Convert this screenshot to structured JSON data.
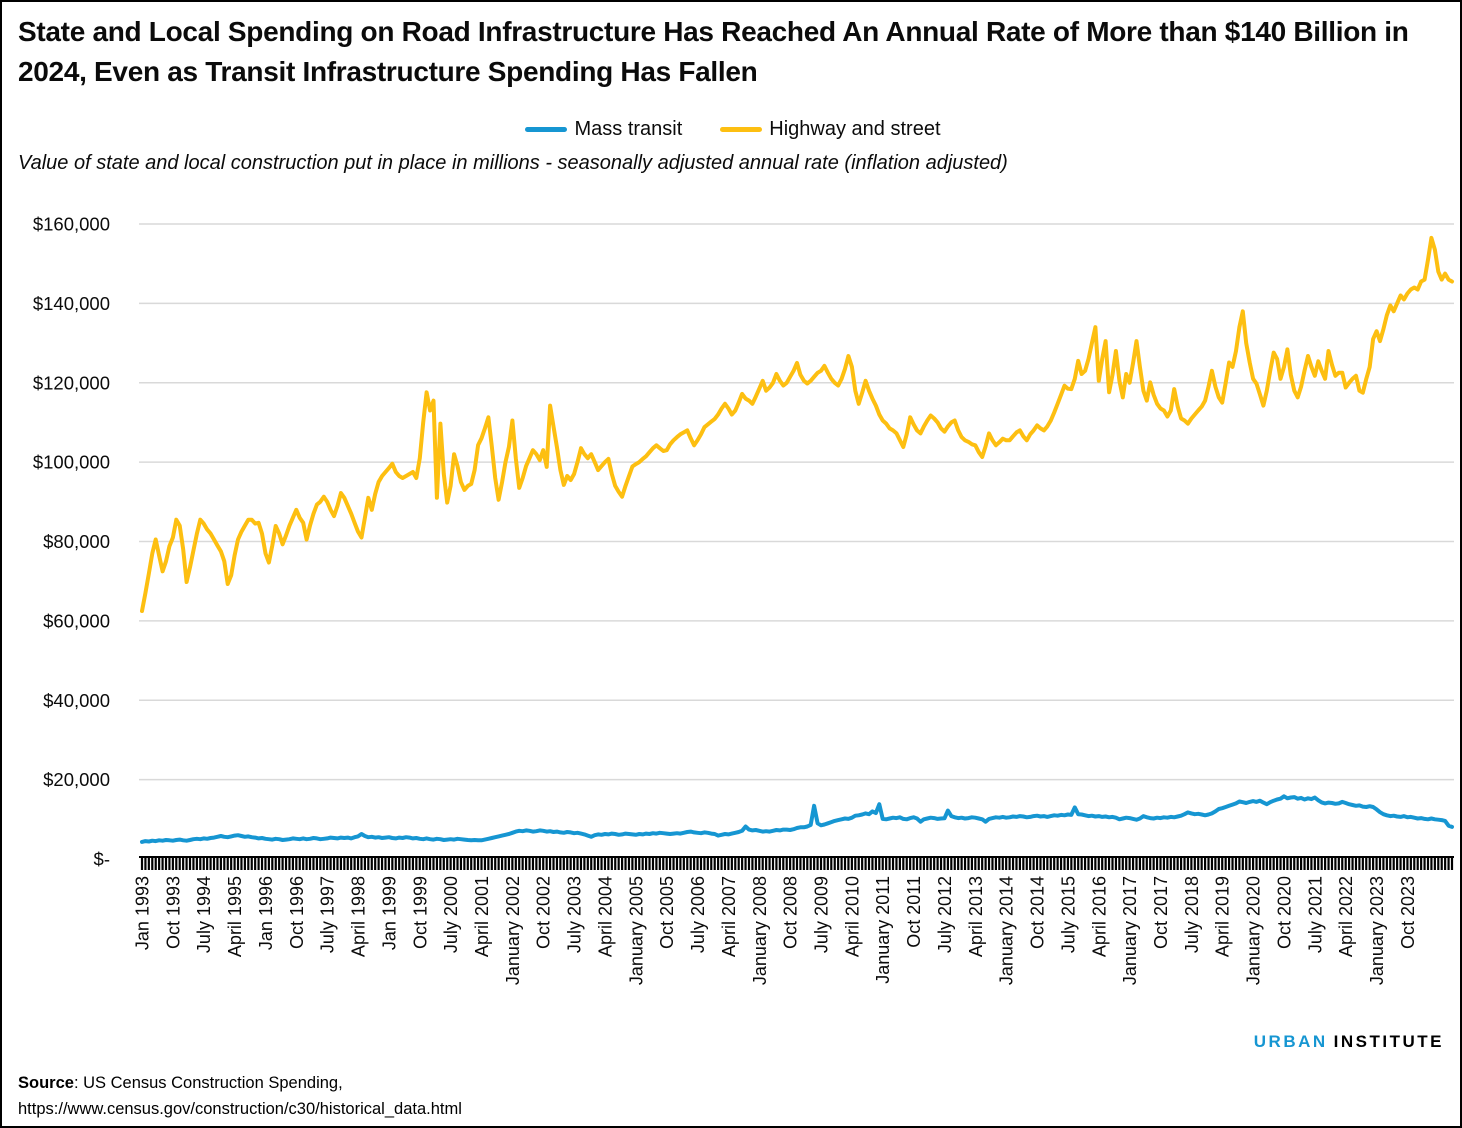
{
  "title": "State and Local Spending on Road Infrastructure Has Reached An Annual Rate of More than $140 Billion in 2024, Even as Transit Infrastructure Spending Has Fallen",
  "subtitle": "Value of state and local construction put in place in millions - seasonally adjusted annual rate (inflation adjusted)",
  "legend": [
    {
      "label": "Mass transit",
      "color": "#1696d2"
    },
    {
      "label": "Highway and street",
      "color": "#fdbf11"
    }
  ],
  "source": {
    "label": "Source",
    "rest": ": US Census Construction Spending,",
    "url": "https://www.census.gov/construction/c30/historical_data.html"
  },
  "logo": {
    "part1": "URBAN",
    "part2": "INSTITUTE",
    "color1": "#1696d2",
    "color2": "#000000"
  },
  "chart_data": {
    "type": "line",
    "x_frequency": "monthly",
    "x_start": "Jan 1993",
    "x_end": "Nov 2024",
    "x_tick_labels": [
      "Jan 1993",
      "Oct 1993",
      "July 1994",
      "April 1995",
      "Jan 1996",
      "Oct 1996",
      "July 1997",
      "April 1998",
      "Jan 1999",
      "Oct 1999",
      "July 2000",
      "April 2001",
      "January 2002",
      "Oct 2002",
      "July 2003",
      "April 2004",
      "January 2005",
      "Oct 2005",
      "July 2006",
      "April 2007",
      "January 2008",
      "Oct 2008",
      "July 2009",
      "April 2010",
      "January 2011",
      "Oct 2011",
      "July 2012",
      "April 2013",
      "January 2014",
      "Oct 2014",
      "July 2015",
      "April 2016",
      "January 2017",
      "Oct 2017",
      "July 2018",
      "April 2019",
      "January 2020",
      "Oct 2020",
      "July 2021",
      "April 2022",
      "January 2023",
      "Oct 2023"
    ],
    "x_tick_step_months": 9,
    "y_tick_labels": [
      "$160,000",
      "$140,000",
      "$120,000",
      "$100,000",
      "$80,000",
      "$60,000",
      "$40,000",
      "$20,000",
      "$-"
    ],
    "ylim": [
      0,
      160000
    ],
    "grid": "horizontal",
    "gridline_color": "#d9d9d9",
    "legend_position": "top",
    "series": [
      {
        "name": "Mass transit",
        "color": "#1696d2",
        "values": [
          4300,
          4500,
          4400,
          4600,
          4500,
          4700,
          4600,
          4800,
          4700,
          4600,
          4800,
          4900,
          4700,
          4600,
          4800,
          5000,
          5100,
          5000,
          5200,
          5100,
          5300,
          5400,
          5600,
          5800,
          5600,
          5500,
          5700,
          5900,
          6000,
          5800,
          5600,
          5700,
          5500,
          5400,
          5200,
          5300,
          5100,
          5000,
          4900,
          5100,
          5000,
          4800,
          4900,
          5000,
          5200,
          5100,
          5000,
          5200,
          5000,
          5100,
          5300,
          5200,
          5000,
          5100,
          5200,
          5400,
          5300,
          5200,
          5400,
          5300,
          5400,
          5200,
          5500,
          5700,
          6300,
          5800,
          5500,
          5600,
          5400,
          5500,
          5300,
          5400,
          5500,
          5300,
          5200,
          5400,
          5300,
          5500,
          5400,
          5200,
          5300,
          5100,
          5000,
          5200,
          5000,
          4900,
          5100,
          5000,
          4800,
          4900,
          5000,
          4900,
          5100,
          5000,
          4900,
          4800,
          4700,
          4800,
          4700,
          4700,
          4900,
          5100,
          5300,
          5500,
          5700,
          5900,
          6100,
          6300,
          6600,
          6900,
          7100,
          7000,
          7200,
          7100,
          6900,
          7000,
          7200,
          7100,
          6900,
          7000,
          6800,
          6900,
          6700,
          6600,
          6800,
          6700,
          6500,
          6600,
          6400,
          6200,
          5900,
          5600,
          6000,
          6200,
          6100,
          6300,
          6200,
          6400,
          6300,
          6100,
          6200,
          6400,
          6300,
          6200,
          6100,
          6300,
          6200,
          6400,
          6300,
          6500,
          6400,
          6600,
          6500,
          6400,
          6300,
          6400,
          6500,
          6400,
          6600,
          6800,
          6900,
          6700,
          6600,
          6500,
          6700,
          6600,
          6400,
          6300,
          5900,
          6100,
          6300,
          6200,
          6400,
          6600,
          6800,
          7100,
          8200,
          7400,
          7200,
          7300,
          7100,
          6900,
          7000,
          6900,
          7100,
          7300,
          7200,
          7400,
          7400,
          7300,
          7500,
          7800,
          8000,
          8000,
          8200,
          8600,
          13400,
          9000,
          8500,
          8700,
          9000,
          9300,
          9600,
          9800,
          10000,
          10200,
          10100,
          10400,
          10900,
          11000,
          11200,
          11500,
          11300,
          12000,
          11600,
          13800,
          10100,
          10000,
          10200,
          10400,
          10300,
          10500,
          10100,
          10000,
          10300,
          10500,
          10200,
          9400,
          10000,
          10200,
          10400,
          10300,
          10100,
          10200,
          10250,
          12200,
          10800,
          10500,
          10300,
          10400,
          10200,
          10300,
          10500,
          10400,
          10200,
          10000,
          9400,
          10100,
          10300,
          10500,
          10400,
          10600,
          10400,
          10500,
          10700,
          10600,
          10800,
          10700,
          10500,
          10600,
          10800,
          10900,
          10700,
          10800,
          10600,
          10800,
          11000,
          10900,
          11100,
          11000,
          11200,
          11100,
          13000,
          11300,
          11200,
          11000,
          10800,
          10900,
          10700,
          10800,
          10600,
          10700,
          10500,
          10600,
          10400,
          10000,
          10200,
          10400,
          10300,
          10100,
          9900,
          10200,
          10800,
          10500,
          10300,
          10200,
          10400,
          10300,
          10500,
          10400,
          10600,
          10500,
          10700,
          10900,
          11300,
          11750,
          11500,
          11300,
          11400,
          11200,
          11000,
          11200,
          11500,
          12000,
          12600,
          12800,
          13100,
          13400,
          13700,
          14000,
          14500,
          14300,
          14100,
          14400,
          14600,
          14400,
          14700,
          14200,
          13800,
          14300,
          14700,
          15000,
          15200,
          15800,
          15300,
          15500,
          15600,
          15200,
          15400,
          15000,
          15300,
          15100,
          15500,
          14800,
          14250,
          14000,
          14200,
          14100,
          13900,
          14000,
          14400,
          14100,
          13800,
          13600,
          13400,
          13500,
          13200,
          13100,
          13300,
          13100,
          12500,
          11800,
          11300,
          11000,
          10800,
          10900,
          10700,
          10600,
          10800,
          10500,
          10600,
          10400,
          10200,
          10300,
          10100,
          10000,
          10200,
          10000,
          9900,
          9800,
          9600,
          8400,
          8100
        ]
      },
      {
        "name": "Highway and street",
        "color": "#fdbf11",
        "values": [
          62500,
          67000,
          72000,
          77000,
          80500,
          76500,
          72500,
          75000,
          78800,
          81000,
          85500,
          84000,
          78000,
          69800,
          73500,
          77700,
          82000,
          85500,
          84500,
          83000,
          82000,
          80500,
          79000,
          77500,
          75000,
          69300,
          71500,
          76500,
          80500,
          82500,
          84000,
          85500,
          85500,
          84500,
          84700,
          82000,
          77000,
          74700,
          79000,
          83900,
          82000,
          79300,
          81500,
          84000,
          86000,
          88000,
          86000,
          84700,
          80500,
          84000,
          87000,
          89300,
          90000,
          91300,
          90000,
          88000,
          86400,
          89000,
          92200,
          91000,
          89000,
          87000,
          84700,
          82500,
          81000,
          86000,
          91000,
          88000,
          92000,
          95000,
          96500,
          97500,
          98500,
          99600,
          97500,
          96500,
          96000,
          96500,
          97000,
          97500,
          96000,
          101000,
          110000,
          117600,
          113000,
          115500,
          91000,
          109700,
          97000,
          89800,
          94000,
          102000,
          99000,
          95000,
          93000,
          94000,
          94500,
          98000,
          104300,
          106000,
          108500,
          111300,
          104000,
          96000,
          90500,
          95000,
          100000,
          103800,
          110500,
          101000,
          93500,
          96000,
          99000,
          101000,
          103000,
          102000,
          100500,
          103000,
          98800,
          114250,
          109000,
          103800,
          98000,
          94250,
          96500,
          95500,
          97000,
          100000,
          103500,
          102000,
          101000,
          102000,
          100000,
          98000,
          99000,
          100000,
          100800,
          97000,
          94000,
          92500,
          91300,
          94000,
          96500,
          98900,
          99500,
          100000,
          100800,
          101500,
          102500,
          103500,
          104250,
          103500,
          102800,
          103000,
          104500,
          105500,
          106300,
          107000,
          107500,
          108000,
          106000,
          104250,
          105500,
          107000,
          108800,
          109500,
          110200,
          110900,
          112000,
          113500,
          114700,
          113500,
          112000,
          113000,
          115000,
          117200,
          116000,
          115500,
          114700,
          116500,
          118500,
          120500,
          118000,
          118800,
          120000,
          122200,
          120500,
          119300,
          120000,
          121500,
          123000,
          125000,
          122000,
          120500,
          119800,
          120500,
          121500,
          122500,
          123000,
          124250,
          122500,
          121000,
          120000,
          119300,
          121000,
          123500,
          126750,
          124000,
          118000,
          114700,
          117500,
          120500,
          118000,
          116000,
          114250,
          112000,
          110500,
          109700,
          108500,
          108000,
          107250,
          105500,
          103800,
          107000,
          111300,
          109500,
          108000,
          107250,
          109000,
          110500,
          111750,
          111000,
          110000,
          108500,
          107700,
          109000,
          110000,
          110500,
          108000,
          106300,
          105500,
          105100,
          104500,
          104250,
          102500,
          101300,
          104000,
          107250,
          105500,
          104250,
          105000,
          105900,
          105500,
          105500,
          106500,
          107500,
          108000,
          106500,
          105500,
          107000,
          108000,
          109250,
          108500,
          108000,
          109000,
          110500,
          112500,
          114700,
          117000,
          119250,
          118500,
          118400,
          121000,
          125500,
          122200,
          123000,
          126000,
          130000,
          134000,
          120500,
          126000,
          130500,
          117600,
          122000,
          128000,
          120500,
          116300,
          122200,
          120000,
          125000,
          130500,
          124000,
          118000,
          115500,
          120100,
          117000,
          114700,
          113500,
          113000,
          111500,
          113000,
          118400,
          114000,
          111000,
          110500,
          109700,
          111000,
          112000,
          113000,
          114000,
          115500,
          119000,
          123000,
          119000,
          116300,
          115000,
          120000,
          125100,
          124000,
          128000,
          134000,
          138000,
          130000,
          125100,
          121000,
          119750,
          117000,
          114250,
          118000,
          123000,
          127600,
          126000,
          121000,
          124000,
          128400,
          122000,
          118000,
          116300,
          119000,
          123000,
          126750,
          124000,
          121750,
          125400,
          123000,
          121000,
          128000,
          124500,
          121750,
          122500,
          122500,
          118800,
          120000,
          121000,
          121750,
          118000,
          117500,
          121000,
          124000,
          131000,
          133000,
          130500,
          133500,
          137000,
          139500,
          138000,
          140000,
          142000,
          141000,
          142500,
          143500,
          144000,
          143500,
          145500,
          146000,
          151000,
          156500,
          153500,
          148000,
          146000,
          147500,
          146000,
          145500
        ]
      }
    ]
  }
}
